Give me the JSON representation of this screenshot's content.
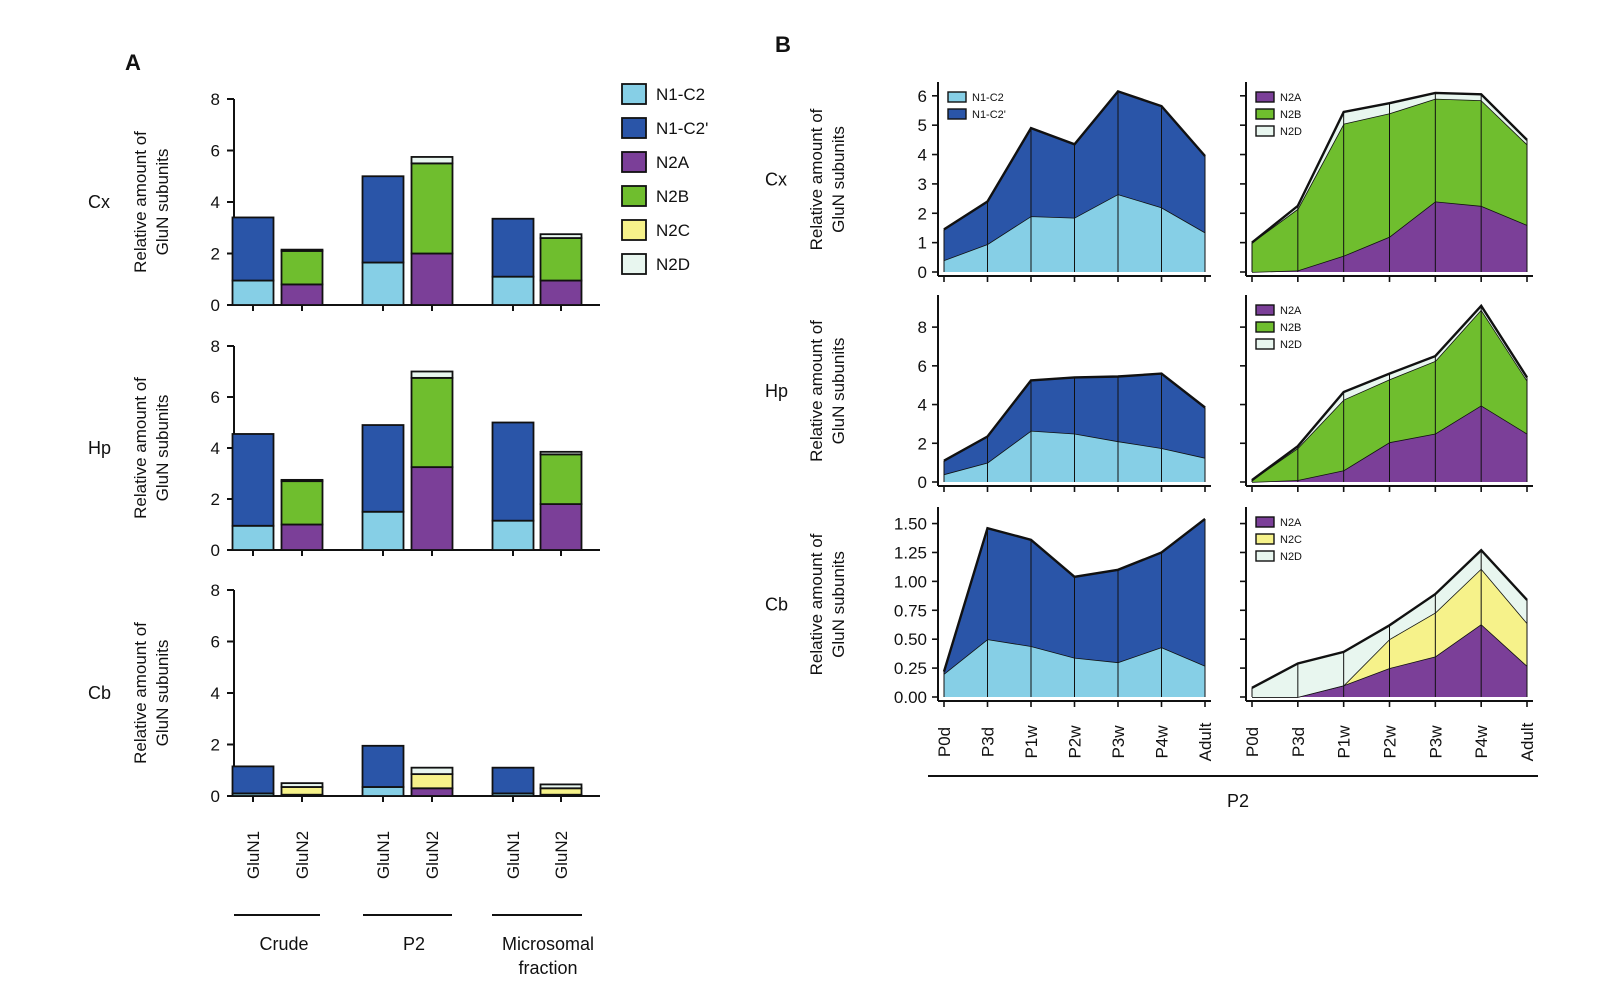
{
  "colors": {
    "N1-C2": "#86cfe6",
    "N1-C2'": "#2a55a8",
    "N2A": "#7b3f98",
    "N2B": "#6fbe2e",
    "N2C": "#f6f28a",
    "N2D": "#e8f6ef",
    "stroke": "#111111"
  },
  "panel_a": {
    "label": "A",
    "legend": [
      "N1-C2",
      "N1-C2'",
      "N2A",
      "N2B",
      "N2C",
      "N2D"
    ],
    "ylabel_line1": "Relative amount of",
    "ylabel_line2": "GluN subunits",
    "groups": [
      "Crude",
      "P2",
      "Microsomal",
      "fraction"
    ]
  },
  "panel_b": {
    "label": "B",
    "ylabel_line1": "Relative amount of",
    "ylabel_line2": "GluN subunits",
    "xlabel_group": "P2"
  },
  "chart_data": [
    {
      "type": "bar",
      "panel": "A",
      "region": "Cx",
      "categories": [
        "GluN1",
        "GluN2",
        "GluN1",
        "GluN2",
        "GluN1",
        "GluN2"
      ],
      "ylim": [
        0,
        8
      ],
      "yticks": [
        0,
        2,
        4,
        6,
        8
      ],
      "series": [
        {
          "name": "N1-C2",
          "values": [
            0.95,
            0,
            1.65,
            0,
            1.1,
            0
          ]
        },
        {
          "name": "N1-C2'",
          "values": [
            2.45,
            0,
            3.35,
            0,
            2.25,
            0
          ]
        },
        {
          "name": "N2A",
          "values": [
            0,
            0.8,
            0,
            2.0,
            0,
            0.95
          ]
        },
        {
          "name": "N2B",
          "values": [
            0,
            1.3,
            0,
            3.5,
            0,
            1.65
          ]
        },
        {
          "name": "N2C",
          "values": [
            0,
            0,
            0,
            0,
            0,
            0
          ]
        },
        {
          "name": "N2D",
          "values": [
            0,
            0.05,
            0,
            0.25,
            0,
            0.15
          ]
        }
      ]
    },
    {
      "type": "bar",
      "panel": "A",
      "region": "Hp",
      "categories": [
        "GluN1",
        "GluN2",
        "GluN1",
        "GluN2",
        "GluN1",
        "GluN2"
      ],
      "ylim": [
        0,
        8
      ],
      "yticks": [
        0,
        2,
        4,
        6,
        8
      ],
      "series": [
        {
          "name": "N1-C2",
          "values": [
            0.95,
            0,
            1.5,
            0,
            1.15,
            0
          ]
        },
        {
          "name": "N1-C2'",
          "values": [
            3.6,
            0,
            3.4,
            0,
            3.85,
            0
          ]
        },
        {
          "name": "N2A",
          "values": [
            0,
            1.0,
            0,
            3.25,
            0,
            1.8
          ]
        },
        {
          "name": "N2B",
          "values": [
            0,
            1.7,
            0,
            3.5,
            0,
            1.95
          ]
        },
        {
          "name": "N2C",
          "values": [
            0,
            0,
            0,
            0,
            0,
            0
          ]
        },
        {
          "name": "N2D",
          "values": [
            0,
            0.05,
            0,
            0.25,
            0,
            0.1
          ]
        }
      ]
    },
    {
      "type": "bar",
      "panel": "A",
      "region": "Cb",
      "categories": [
        "GluN1",
        "GluN2",
        "GluN1",
        "GluN2",
        "GluN1",
        "GluN2"
      ],
      "ylim": [
        0,
        8
      ],
      "yticks": [
        0,
        2,
        4,
        6,
        8
      ],
      "series": [
        {
          "name": "N1-C2",
          "values": [
            0.1,
            0,
            0.35,
            0,
            0.1,
            0
          ]
        },
        {
          "name": "N1-C2'",
          "values": [
            1.05,
            0,
            1.6,
            0,
            1.0,
            0
          ]
        },
        {
          "name": "N2A",
          "values": [
            0,
            0.05,
            0,
            0.3,
            0,
            0.05
          ]
        },
        {
          "name": "N2B",
          "values": [
            0,
            0,
            0,
            0,
            0,
            0
          ]
        },
        {
          "name": "N2C",
          "values": [
            0,
            0.3,
            0,
            0.55,
            0,
            0.25
          ]
        },
        {
          "name": "N2D",
          "values": [
            0,
            0.15,
            0,
            0.25,
            0,
            0.15
          ]
        }
      ]
    },
    {
      "type": "area",
      "panel": "B",
      "region": "Cx",
      "side": "GluN1",
      "x": [
        "P0d",
        "P3d",
        "P1w",
        "P2w",
        "P3w",
        "P4w",
        "Adult"
      ],
      "ylim": [
        0,
        6.3
      ],
      "yticks": [
        0,
        1,
        2,
        3,
        4,
        5,
        6
      ],
      "legend": [
        "N1-C2",
        "N1-C2'"
      ],
      "series": [
        {
          "name": "N1-C2",
          "values": [
            0.4,
            0.95,
            1.9,
            1.85,
            2.65,
            2.2,
            1.35
          ]
        },
        {
          "name": "N1-C2'",
          "values": [
            1.05,
            1.45,
            3.0,
            2.5,
            3.5,
            3.45,
            2.6
          ]
        }
      ]
    },
    {
      "type": "area",
      "panel": "B",
      "region": "Cx",
      "side": "GluN2",
      "x": [
        "P0d",
        "P3d",
        "P1w",
        "P2w",
        "P3w",
        "P4w",
        "Adult"
      ],
      "ylim": [
        0,
        6.3
      ],
      "yticks": [
        0,
        1,
        2,
        3,
        4,
        5,
        6
      ],
      "legend": [
        "N2A",
        "N2B",
        "N2D"
      ],
      "series": [
        {
          "name": "N2A",
          "values": [
            0.0,
            0.05,
            0.55,
            1.2,
            2.4,
            2.25,
            1.6
          ]
        },
        {
          "name": "N2B",
          "values": [
            1.0,
            2.1,
            4.5,
            4.2,
            3.5,
            3.6,
            2.75
          ]
        },
        {
          "name": "N2D",
          "values": [
            0.0,
            0.1,
            0.4,
            0.35,
            0.2,
            0.2,
            0.15
          ]
        }
      ]
    },
    {
      "type": "area",
      "panel": "B",
      "region": "Hp",
      "side": "GluN1",
      "x": [
        "P0d",
        "P3d",
        "P1w",
        "P2w",
        "P3w",
        "P4w",
        "Adult"
      ],
      "ylim": [
        0,
        9.4
      ],
      "yticks": [
        0,
        2,
        4,
        6,
        8
      ],
      "legend": [],
      "series": [
        {
          "name": "N1-C2",
          "values": [
            0.4,
            1.0,
            2.65,
            2.5,
            2.1,
            1.75,
            1.25
          ]
        },
        {
          "name": "N1-C2'",
          "values": [
            0.7,
            1.35,
            2.6,
            2.9,
            3.35,
            3.85,
            2.6
          ]
        }
      ]
    },
    {
      "type": "area",
      "panel": "B",
      "region": "Hp",
      "side": "GluN2",
      "x": [
        "P0d",
        "P3d",
        "P1w",
        "P2w",
        "P3w",
        "P4w",
        "Adult"
      ],
      "ylim": [
        0,
        9.4
      ],
      "yticks": [
        0,
        2,
        4,
        6,
        8
      ],
      "legend": [
        "N2A",
        "N2B",
        "N2D"
      ],
      "series": [
        {
          "name": "N2A",
          "values": [
            0.0,
            0.1,
            0.6,
            2.05,
            2.5,
            3.95,
            2.5
          ]
        },
        {
          "name": "N2B",
          "values": [
            0.1,
            1.65,
            3.65,
            3.25,
            3.75,
            4.95,
            2.75
          ]
        },
        {
          "name": "N2D",
          "values": [
            0.0,
            0.1,
            0.4,
            0.3,
            0.25,
            0.2,
            0.15
          ]
        }
      ]
    },
    {
      "type": "area",
      "panel": "B",
      "region": "Cb",
      "side": "GluN1",
      "x": [
        "P0d",
        "P3d",
        "P1w",
        "P2w",
        "P3w",
        "P4w",
        "Adult"
      ],
      "ylim": [
        0,
        1.6
      ],
      "yticks": [
        "0.00",
        "0.25",
        "0.50",
        "0.75",
        "1.00",
        "1.25",
        "1.50"
      ],
      "legend": [],
      "series": [
        {
          "name": "N1-C2",
          "values": [
            0.2,
            0.5,
            0.44,
            0.34,
            0.3,
            0.43,
            0.27
          ]
        },
        {
          "name": "N1-C2'",
          "values": [
            0.02,
            0.96,
            0.92,
            0.7,
            0.8,
            0.82,
            1.27
          ]
        }
      ]
    },
    {
      "type": "area",
      "panel": "B",
      "region": "Cb",
      "side": "GluN2",
      "x": [
        "P0d",
        "P3d",
        "P1w",
        "P2w",
        "P3w",
        "P4w",
        "Adult"
      ],
      "ylim": [
        0,
        1.6
      ],
      "yticks": [
        "0.00",
        "0.25",
        "0.50",
        "0.75",
        "1.00",
        "1.25",
        "1.50"
      ],
      "legend": [
        "N2A",
        "N2C",
        "N2D"
      ],
      "series": [
        {
          "name": "N2A",
          "values": [
            0.0,
            0.0,
            0.1,
            0.25,
            0.35,
            0.63,
            0.27
          ]
        },
        {
          "name": "N2C",
          "values": [
            0.0,
            0.0,
            0.0,
            0.25,
            0.38,
            0.48,
            0.37
          ]
        },
        {
          "name": "N2D",
          "values": [
            0.08,
            0.29,
            0.29,
            0.12,
            0.16,
            0.16,
            0.2
          ]
        }
      ]
    }
  ]
}
